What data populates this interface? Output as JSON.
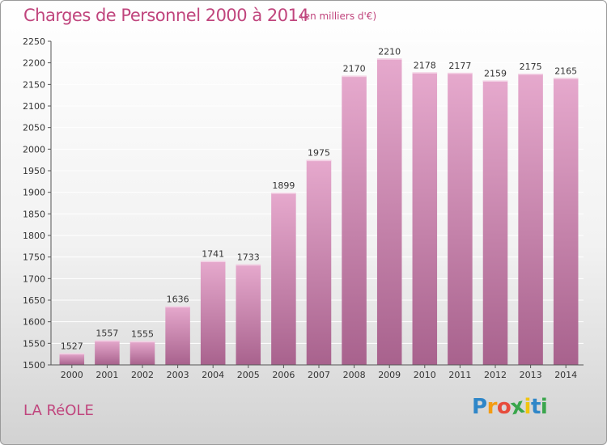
{
  "header": {
    "title": "Charges de Personnel 2000 à 2014",
    "subtitle": "(en milliers d'€)"
  },
  "footer": {
    "commune": "LA RéOLE",
    "logo_letters": [
      "P",
      "r",
      "o",
      "x",
      "i",
      "t",
      "i"
    ],
    "logo_colors": [
      "#2e86c8",
      "#f39c12",
      "#e74c3c",
      "#3aa64c",
      "#f1c40f",
      "#2e86c8",
      "#3aa64c"
    ]
  },
  "colors": {
    "title": "#c0457d",
    "bar_top": "#e6a9cd",
    "bar_bottom": "#a8628d",
    "axis": "#555555",
    "grid": "#ffffff"
  },
  "chart_data": {
    "type": "bar",
    "categories": [
      "2000",
      "2001",
      "2002",
      "2003",
      "2004",
      "2005",
      "2006",
      "2007",
      "2008",
      "2009",
      "2010",
      "2011",
      "2012",
      "2013",
      "2014"
    ],
    "values": [
      1527,
      1557,
      1555,
      1636,
      1741,
      1733,
      1899,
      1975,
      2170,
      2210,
      2178,
      2177,
      2159,
      2175,
      2165
    ],
    "ylim": [
      1500,
      2250
    ],
    "yticks": [
      1500,
      1550,
      1600,
      1650,
      1700,
      1750,
      1800,
      1850,
      1900,
      1950,
      2000,
      2050,
      2100,
      2150,
      2200,
      2250
    ],
    "grid": true,
    "data_labels": true
  }
}
